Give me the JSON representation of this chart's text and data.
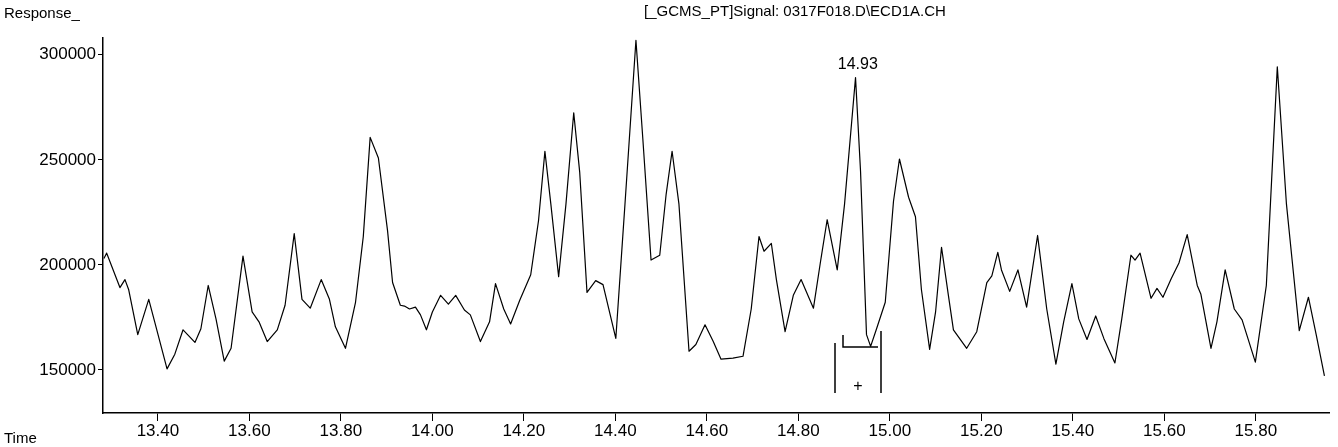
{
  "chart_data": {
    "type": "line",
    "title": "[_GCMS_PT]Signal: 0317F018.D\\ECD1A.CH",
    "xlabel": "Time",
    "ylabel": "Response_",
    "series": [
      {
        "color": "#000000",
        "x": [
          13.282,
          13.288,
          13.317,
          13.328,
          13.336,
          13.356,
          13.38,
          13.393,
          13.42,
          13.437,
          13.455,
          13.481,
          13.494,
          13.51,
          13.527,
          13.545,
          13.56,
          13.586,
          13.606,
          13.621,
          13.639,
          13.661,
          13.678,
          13.698,
          13.715,
          13.733,
          13.757,
          13.775,
          13.788,
          13.81,
          13.832,
          13.849,
          13.864,
          13.882,
          13.902,
          13.913,
          13.93,
          13.939,
          13.95,
          13.963,
          13.974,
          13.987,
          14.0,
          14.018,
          14.035,
          14.051,
          14.07,
          14.083,
          14.105,
          14.125,
          14.138,
          14.156,
          14.171,
          14.191,
          14.215,
          14.232,
          14.246,
          14.259,
          14.276,
          14.292,
          14.309,
          14.322,
          14.338,
          14.357,
          14.373,
          14.401,
          14.421,
          14.445,
          14.46,
          14.478,
          14.497,
          14.511,
          14.524,
          14.539,
          14.561,
          14.576,
          14.596,
          14.614,
          14.631,
          14.657,
          14.679,
          14.697,
          14.714,
          14.725,
          14.741,
          14.752,
          14.771,
          14.789,
          14.806,
          14.833,
          14.848,
          14.863,
          14.885,
          14.901,
          14.925,
          14.936,
          14.949,
          14.958,
          14.971,
          14.99,
          15.008,
          15.021,
          15.041,
          15.056,
          15.069,
          15.087,
          15.1,
          15.113,
          15.128,
          15.139,
          15.168,
          15.19,
          15.212,
          15.223,
          15.236,
          15.244,
          15.262,
          15.28,
          15.299,
          15.323,
          15.343,
          15.363,
          15.38,
          15.398,
          15.413,
          15.431,
          15.45,
          15.468,
          15.492,
          15.507,
          15.527,
          15.536,
          15.547,
          15.571,
          15.584,
          15.597,
          15.615,
          15.632,
          15.65,
          15.672,
          15.68,
          15.702,
          15.715,
          15.733,
          15.753,
          15.77,
          15.799,
          15.823,
          15.847,
          15.867,
          15.895,
          15.915,
          15.932,
          15.95
        ],
        "values": [
          203000,
          205600,
          189200,
          193000,
          188300,
          166800,
          183600,
          172900,
          150500,
          157500,
          169100,
          163100,
          169600,
          190200,
          174300,
          154200,
          160300,
          204200,
          177600,
          172900,
          163500,
          169100,
          180800,
          214900,
          183600,
          179400,
          193000,
          183600,
          170500,
          160300,
          182200,
          213500,
          260700,
          250900,
          216300,
          191600,
          180800,
          180400,
          179000,
          179900,
          176200,
          169100,
          177600,
          185500,
          181300,
          185500,
          178500,
          176200,
          163500,
          172900,
          191100,
          179000,
          171900,
          183200,
          195300,
          221000,
          254100,
          228900,
          194400,
          228900,
          272400,
          244300,
          186900,
          192500,
          190600,
          165000,
          228900,
          306900,
          260200,
          202300,
          204600,
          233600,
          254100,
          228900,
          158900,
          162100,
          171500,
          163500,
          155100,
          155600,
          156500,
          179000,
          213500,
          206500,
          210200,
          193000,
          168200,
          185500,
          193000,
          179400,
          200900,
          221500,
          197600,
          228900,
          289200,
          244300,
          166800,
          161200,
          169600,
          182200,
          230300,
          250400,
          232200,
          222900,
          188300,
          159800,
          177600,
          208400,
          185500,
          169100,
          160300,
          168200,
          191600,
          194800,
          206000,
          197600,
          187400,
          197600,
          179900,
          214000,
          179000,
          152800,
          172900,
          191100,
          174300,
          164500,
          175700,
          164900,
          153300,
          174300,
          204600,
          202300,
          205600,
          184100,
          188800,
          184600,
          193400,
          200900,
          214400,
          190200,
          186000,
          160300,
          172900,
          197600,
          179000,
          173800,
          153700,
          190200,
          294300,
          228900,
          168700,
          184600,
          166800,
          147200
        ]
      }
    ],
    "xlim": [
      13.28,
      15.96
    ],
    "xticks": [
      {
        "value": 13.4,
        "label": "13.40"
      },
      {
        "value": 13.6,
        "label": "13.60"
      },
      {
        "value": 13.8,
        "label": "13.80"
      },
      {
        "value": 14.0,
        "label": "14.00"
      },
      {
        "value": 14.2,
        "label": "14.20"
      },
      {
        "value": 14.4,
        "label": "14.40"
      },
      {
        "value": 14.6,
        "label": "14.60"
      },
      {
        "value": 14.8,
        "label": "14.80"
      },
      {
        "value": 15.0,
        "label": "15.00"
      },
      {
        "value": 15.2,
        "label": "15.20"
      },
      {
        "value": 15.4,
        "label": "15.40"
      },
      {
        "value": 15.6,
        "label": "15.60"
      },
      {
        "value": 15.8,
        "label": "15.80"
      }
    ],
    "ylim": [
      129500,
      308000
    ],
    "yticks": [
      150000,
      200000,
      250000,
      300000
    ],
    "grid": false,
    "legend": false,
    "marker": "none",
    "line_style": "solid",
    "annotations": [
      {
        "text": "14.93",
        "x": 14.93,
        "y": 289200
      },
      "+"
    ]
  }
}
